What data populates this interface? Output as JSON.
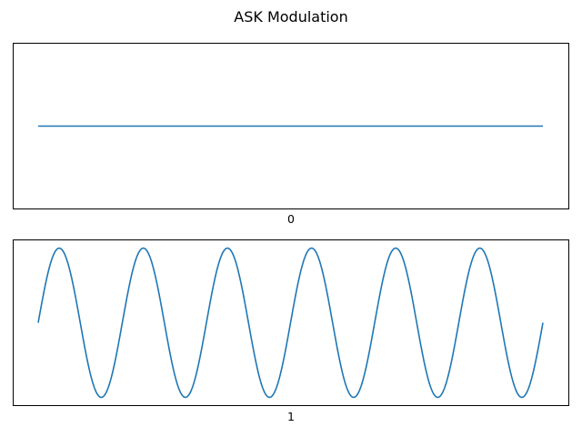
{
  "chart_data": {
    "title": "ASK Modulation",
    "colors": {
      "line": "#1f77b4",
      "axes": "#000000",
      "background": "#ffffff"
    },
    "panels": [
      {
        "type": "line",
        "xlabel": "0",
        "bit": 0,
        "amplitude": 0,
        "cycles": 6,
        "x_ticks": false,
        "y_ticks": false,
        "grid": false
      },
      {
        "type": "line",
        "xlabel": "1",
        "bit": 1,
        "amplitude": 1,
        "cycles": 6,
        "x_ticks": false,
        "y_ticks": false,
        "grid": false
      }
    ]
  }
}
